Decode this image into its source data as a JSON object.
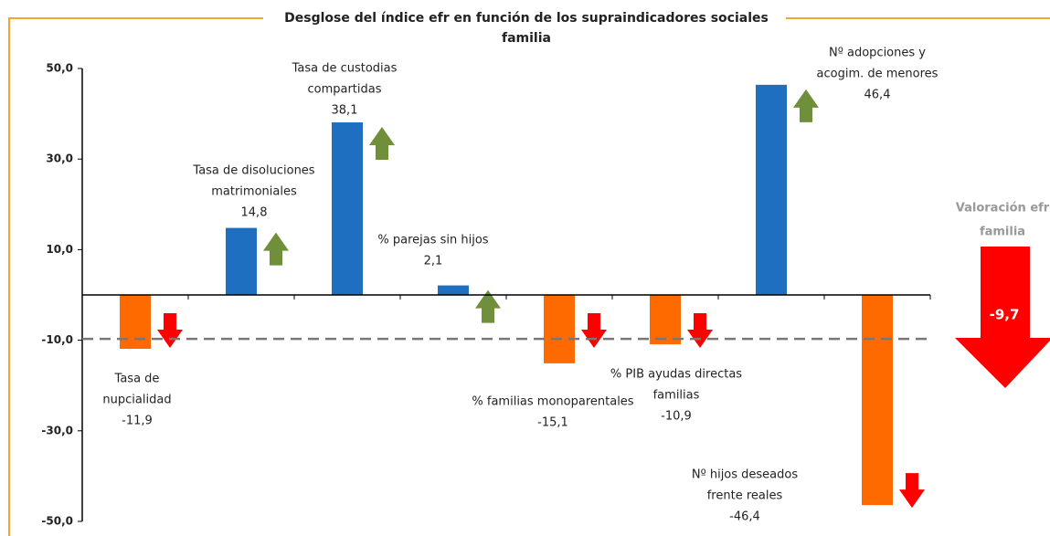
{
  "chart_data": {
    "type": "bar",
    "title": [
      "Desglose del índice efr en función de los supraindicadores sociales",
      "familia"
    ],
    "categories": [
      [
        "Tasa de",
        "nupcialidad"
      ],
      [
        "Tasa de disoluciones",
        "matrimoniales"
      ],
      [
        "Tasa de custodias",
        "compartidas"
      ],
      [
        "% parejas sin hijos"
      ],
      [
        "% familias monoparentales"
      ],
      [
        "% PIB ayudas directas",
        "familias"
      ],
      [
        "Nº adopciones y",
        "acogim. de menores"
      ],
      [
        "Nº hijos deseados",
        "frente reales"
      ]
    ],
    "values": [
      -11.9,
      14.8,
      38.1,
      2.1,
      -15.1,
      -10.9,
      46.4,
      -46.4
    ],
    "value_labels": [
      "-11,9",
      "14,8",
      "38,1",
      "2,1",
      "-15,1",
      "-10,9",
      "46,4",
      "-46,4"
    ],
    "colors": {
      "positive": "#1f6fc0",
      "negative": "#ff6a00"
    },
    "arrow_colors": {
      "up": "#6f8f3a",
      "down": "#ff0000"
    },
    "ylim": [
      -50,
      50
    ],
    "yticks": [
      {
        "value": 50,
        "label": "50,0"
      },
      {
        "value": 30,
        "label": "30,0"
      },
      {
        "value": 10,
        "label": "10,0"
      },
      {
        "value": -10,
        "label": "-10,0"
      },
      {
        "value": -30,
        "label": "-30,0"
      },
      {
        "value": -50,
        "label": "-50,0"
      }
    ],
    "reference": {
      "label": [
        "Valoración efr",
        "familia"
      ],
      "value": -9.7,
      "value_label": "-9,7"
    }
  }
}
